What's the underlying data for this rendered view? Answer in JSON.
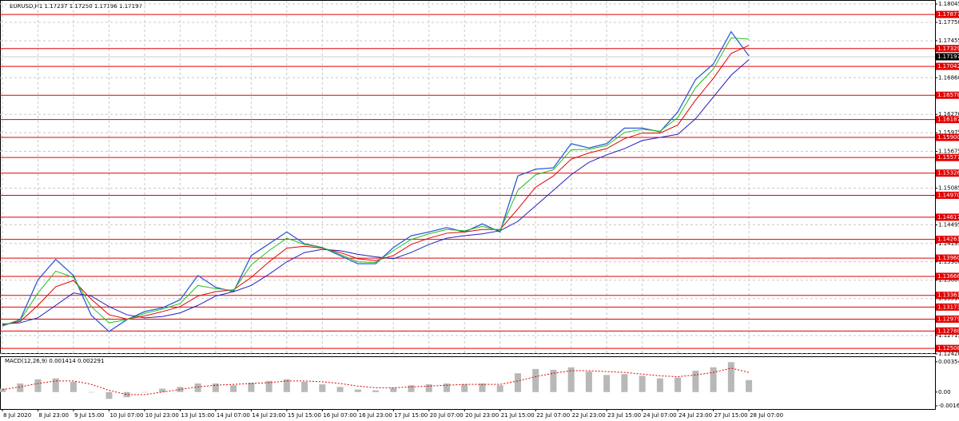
{
  "chart_data": [
    {
      "type": "line",
      "title": "EURUSD,H1  1.17237 1.17250 1.17196 1.17197",
      "categories": [
        "8 Jul 2020",
        null,
        "8 Jul 23:00",
        null,
        "9 Jul 15:00",
        null,
        "10 Jul 07:00",
        null,
        "10 Jul 23:00",
        null,
        "13 Jul 15:00",
        null,
        "14 Jul 07:00",
        null,
        "14 Jul 23:00",
        null,
        "15 Jul 15:00",
        null,
        "16 Jul 07:00",
        null,
        "16 Jul 23:00",
        null,
        "17 Jul 15:00",
        null,
        "20 Jul 07:00",
        null,
        "20 Jul 23:00",
        null,
        "21 Jul 15:00",
        null,
        "22 Jul 07:00",
        null,
        "22 Jul 23:00",
        null,
        "23 Jul 15:00",
        null,
        "24 Jul 07:00",
        null,
        "24 Jul 23:00",
        null,
        "27 Jul 15:00",
        null,
        "28 Jul 07:00"
      ],
      "series": [
        {
          "color": "#2f5bd6",
          "values": [
            1.1287,
            1.1297,
            1.1361,
            1.1394,
            1.1368,
            1.1304,
            1.1278,
            1.1297,
            1.131,
            1.1316,
            1.1329,
            1.1368,
            1.1349,
            1.1342,
            1.14,
            1.1419,
            1.1438,
            1.1419,
            1.1413,
            1.14,
            1.1387,
            1.1387,
            1.1413,
            1.1432,
            1.1438,
            1.1445,
            1.1438,
            1.1451,
            1.1438,
            1.1528,
            1.1539,
            1.1541,
            1.158,
            1.1573,
            1.158,
            1.1605,
            1.1605,
            1.1599,
            1.1631,
            1.1683,
            1.1708,
            1.176,
            1.1721
          ]
        },
        {
          "color": "#2020c0",
          "values": [
            1.129,
            1.1292,
            1.13,
            1.132,
            1.134,
            1.1335,
            1.1318,
            1.1305,
            1.13,
            1.1302,
            1.1308,
            1.132,
            1.1335,
            1.1342,
            1.1352,
            1.137,
            1.139,
            1.1405,
            1.141,
            1.1408,
            1.1402,
            1.1398,
            1.1395,
            1.1405,
            1.1418,
            1.1428,
            1.1432,
            1.1435,
            1.144,
            1.1455,
            1.148,
            1.1505,
            1.153,
            1.155,
            1.1562,
            1.1572,
            1.1585,
            1.159,
            1.1595,
            1.162,
            1.1655,
            1.169,
            1.1715
          ]
        },
        {
          "color": "#e00000",
          "values": [
            1.1289,
            1.1294,
            1.132,
            1.135,
            1.136,
            1.133,
            1.1305,
            1.1298,
            1.1303,
            1.131,
            1.1318,
            1.1335,
            1.1342,
            1.1345,
            1.1365,
            1.139,
            1.1412,
            1.1415,
            1.1412,
            1.1405,
            1.1395,
            1.1392,
            1.14,
            1.1418,
            1.1428,
            1.1436,
            1.1438,
            1.1442,
            1.1442,
            1.1475,
            1.151,
            1.1528,
            1.1555,
            1.1565,
            1.1572,
            1.1588,
            1.1597,
            1.1597,
            1.161,
            1.165,
            1.1685,
            1.1725,
            1.1738
          ]
        },
        {
          "color": "#20c020",
          "values": [
            1.1288,
            1.1296,
            1.134,
            1.1375,
            1.1365,
            1.1318,
            1.1292,
            1.1297,
            1.1307,
            1.1314,
            1.1323,
            1.1352,
            1.1347,
            1.1344,
            1.1385,
            1.1408,
            1.1428,
            1.1418,
            1.1413,
            1.1402,
            1.139,
            1.1389,
            1.1408,
            1.1426,
            1.1435,
            1.1442,
            1.144,
            1.1447,
            1.144,
            1.1505,
            1.153,
            1.1538,
            1.157,
            1.1571,
            1.1577,
            1.1598,
            1.1603,
            1.16,
            1.1622,
            1.167,
            1.17,
            1.175,
            1.1748
          ]
        }
      ],
      "levels_color": "#e00000",
      "levels": [
        1.17877,
        1.17329,
        1.17042,
        1.16578,
        1.16187,
        {
          "value": 1.159,
          "label": "1.15900"
        },
        1.15577,
        1.15326,
        {
          "value": 1.1497,
          "label": "1.14970"
        },
        1.14617,
        1.14261,
        {
          "value": 1.1396,
          "label": "1.13960"
        },
        1.13666,
        1.13361,
        1.13173,
        1.12979,
        1.12788,
        1.12508
      ],
      "current_price": 1.17197,
      "ylim": [
        1.1242,
        1.18045
      ],
      "yticks": [
        1.18045,
        {
          "value": 1.1775,
          "label": "1.17750"
        },
        1.17455,
        {
          "value": 1.1686,
          "label": "1.16860"
        },
        {
          "value": 1.1627,
          "label": "1.16270"
        },
        1.15975,
        1.15675,
        1.15085,
        1.14495,
        1.14195,
        {
          "value": 1.139,
          "label": "1.13900"
        },
        1.13605,
        {
          "value": 1.1331,
          "label": "1.13310"
        },
        1.12715,
        {
          "value": 1.1242,
          "label": "1.12420"
        }
      ],
      "grid": true
    },
    {
      "type": "bar",
      "title": "MACD(12,26,9) 0.001414 0.002291",
      "series": [
        {
          "type": "bar",
          "color": "#b8b8b8",
          "values": [
            0.0004,
            0.001,
            0.0015,
            0.0016,
            0.0012,
            0.0,
            -0.0008,
            -0.0006,
            0.0,
            0.0004,
            0.0006,
            0.001,
            0.001,
            0.0008,
            0.0011,
            0.0013,
            0.0015,
            0.0012,
            0.0009,
            0.0006,
            0.0003,
            0.0002,
            0.0005,
            0.0008,
            0.0009,
            0.001,
            0.0009,
            0.001,
            0.0008,
            0.0022,
            0.0027,
            0.0026,
            0.0029,
            0.0024,
            0.002,
            0.0021,
            0.0019,
            0.0016,
            0.0017,
            0.0025,
            0.0029,
            0.0035,
            0.0014
          ]
        },
        {
          "type": "line",
          "color": "#e00000",
          "values": [
            0.0003,
            0.0006,
            0.001,
            0.0013,
            0.0013,
            0.0009,
            0.0002,
            -0.0003,
            -0.0003,
            0.0,
            0.0003,
            0.0006,
            0.0008,
            0.0009,
            0.001,
            0.0011,
            0.0013,
            0.0013,
            0.0012,
            0.001,
            0.0007,
            0.0005,
            0.0005,
            0.0006,
            0.0007,
            0.0008,
            0.0009,
            0.0009,
            0.0009,
            0.0013,
            0.0018,
            0.0022,
            0.0025,
            0.0025,
            0.0024,
            0.0023,
            0.0021,
            0.0019,
            0.0018,
            0.002,
            0.0023,
            0.0028,
            0.0023
          ]
        }
      ],
      "ylim": [
        -0.0018,
        0.004
      ],
      "yticks": [
        0.00354,
        {
          "value": 0,
          "label": "0.00"
        },
        -0.00162
      ]
    }
  ]
}
